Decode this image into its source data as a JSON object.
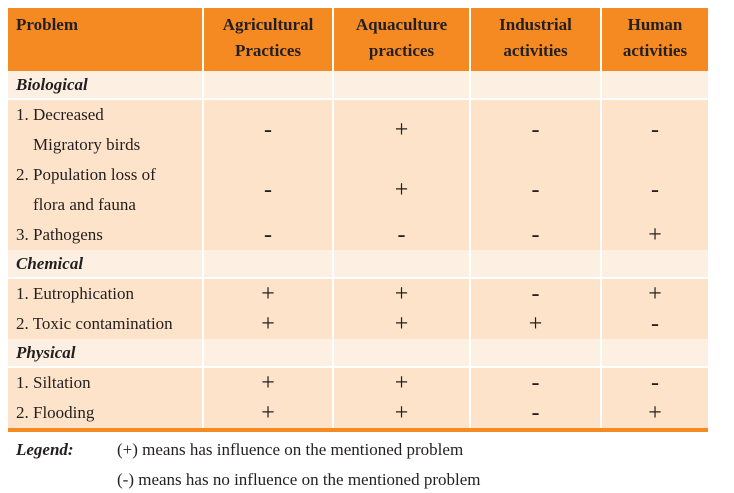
{
  "headers": [
    "Problem",
    "Agricultural Practices",
    "Aquaculture practices",
    "Industrial activities",
    "Human activities"
  ],
  "headers_lines": [
    [
      "Problem"
    ],
    [
      "Agricultural",
      "Practices"
    ],
    [
      "Aquaculture",
      "practices"
    ],
    [
      "Industrial",
      "activities"
    ],
    [
      "Human",
      "activities"
    ]
  ],
  "sections": [
    {
      "title": "Biological",
      "rows": [
        {
          "lines": [
            "1. Decreased",
            "Migratory birds"
          ],
          "values": [
            "-",
            "+",
            "-",
            "-"
          ]
        },
        {
          "lines": [
            "2. Population loss of",
            "flora and fauna"
          ],
          "values": [
            "-",
            "+",
            "-",
            "-"
          ]
        },
        {
          "lines": [
            "3. Pathogens"
          ],
          "values": [
            "-",
            "-",
            "-",
            "+"
          ]
        }
      ]
    },
    {
      "title": "Chemical",
      "rows": [
        {
          "lines": [
            "1. Eutrophication"
          ],
          "values": [
            "+",
            "+",
            "-",
            "+"
          ]
        },
        {
          "lines": [
            "2. Toxic contamination"
          ],
          "values": [
            "+",
            "+",
            "+",
            "-"
          ]
        }
      ]
    },
    {
      "title": "Physical",
      "rows": [
        {
          "lines": [
            "1. Siltation"
          ],
          "values": [
            "+",
            "+",
            "-",
            "-"
          ]
        },
        {
          "lines": [
            "2. Flooding"
          ],
          "values": [
            "+",
            "+",
            "-",
            "+"
          ]
        }
      ]
    }
  ],
  "legend": {
    "label": "Legend:",
    "items": [
      "(+) means has influence on the mentioned problem",
      "(-) means has no influence on the mentioned problem"
    ]
  },
  "colors": {
    "header": "#F58A22",
    "section": "#FDF0E2",
    "row": "#FDE3C9"
  }
}
